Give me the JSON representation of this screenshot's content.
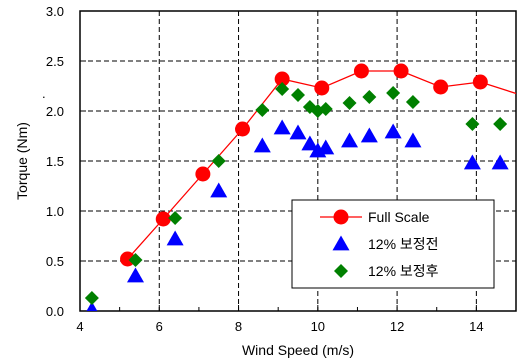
{
  "chart_data": {
    "type": "scatter",
    "xlabel": "Wind Speed (m/s)",
    "ylabel": "Torque (Nm)",
    "xlim": [
      4,
      15
    ],
    "ylim": [
      0,
      3.0
    ],
    "x_ticks": [
      "4",
      "6",
      "8",
      "10",
      "12",
      "14"
    ],
    "y_ticks": [
      "0.0",
      "0.5",
      "1.0",
      "1.5",
      "2.0",
      "2.5",
      "3.0"
    ],
    "grid": "dashed",
    "legend_position": "bottom-right",
    "series": [
      {
        "name": "Full Scale",
        "marker": "circle",
        "line": true,
        "color": "#ff0000",
        "points": [
          [
            5.2,
            0.52
          ],
          [
            6.1,
            0.92
          ],
          [
            7.1,
            1.37
          ],
          [
            8.1,
            1.82
          ],
          [
            9.1,
            2.32
          ],
          [
            10.1,
            2.23
          ],
          [
            11.1,
            2.4
          ],
          [
            12.1,
            2.4
          ],
          [
            13.1,
            2.24
          ],
          [
            14.1,
            2.29
          ],
          [
            15.2,
            2.15
          ]
        ]
      },
      {
        "name": "12% 보정전",
        "marker": "triangle",
        "line": false,
        "color": "#0000ff",
        "points": [
          [
            4.3,
            0.01
          ],
          [
            5.4,
            0.35
          ],
          [
            6.4,
            0.72
          ],
          [
            7.5,
            1.2
          ],
          [
            8.6,
            1.65
          ],
          [
            9.1,
            1.83
          ],
          [
            9.5,
            1.78
          ],
          [
            9.8,
            1.67
          ],
          [
            10.0,
            1.6
          ],
          [
            10.2,
            1.63
          ],
          [
            10.8,
            1.7
          ],
          [
            11.3,
            1.75
          ],
          [
            11.9,
            1.79
          ],
          [
            12.4,
            1.7
          ],
          [
            13.9,
            1.48
          ],
          [
            14.6,
            1.48
          ]
        ]
      },
      {
        "name": "12% 보정후",
        "marker": "diamond",
        "line": false,
        "color": "#008000",
        "points": [
          [
            4.3,
            0.13
          ],
          [
            5.4,
            0.51
          ],
          [
            6.4,
            0.93
          ],
          [
            7.5,
            1.5
          ],
          [
            8.6,
            2.01
          ],
          [
            9.1,
            2.22
          ],
          [
            9.5,
            2.16
          ],
          [
            9.8,
            2.04
          ],
          [
            10.0,
            2.0
          ],
          [
            10.2,
            2.02
          ],
          [
            10.8,
            2.08
          ],
          [
            11.3,
            2.14
          ],
          [
            11.9,
            2.18
          ],
          [
            12.4,
            2.09
          ],
          [
            13.9,
            1.87
          ],
          [
            14.6,
            1.87
          ]
        ]
      }
    ]
  },
  "side_mark": "."
}
